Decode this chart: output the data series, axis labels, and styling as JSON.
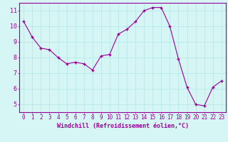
{
  "x": [
    0,
    1,
    2,
    3,
    4,
    5,
    6,
    7,
    8,
    9,
    10,
    11,
    12,
    13,
    14,
    15,
    16,
    17,
    18,
    19,
    20,
    21,
    22,
    23
  ],
  "y": [
    10.3,
    9.3,
    8.6,
    8.5,
    8.0,
    7.6,
    7.7,
    7.6,
    7.2,
    8.1,
    8.2,
    9.5,
    9.8,
    10.3,
    11.0,
    11.2,
    11.2,
    10.0,
    7.9,
    6.1,
    5.0,
    4.9,
    6.1,
    6.5
  ],
  "line_color": "#990099",
  "marker": "+",
  "xlabel": "Windchill (Refroidissement éolien,°C)",
  "ylabel": "",
  "ylim": [
    4.5,
    11.5
  ],
  "yticks": [
    5,
    6,
    7,
    8,
    9,
    10,
    11
  ],
  "xlim": [
    -0.5,
    23.5
  ],
  "xticks": [
    0,
    1,
    2,
    3,
    4,
    5,
    6,
    7,
    8,
    9,
    10,
    11,
    12,
    13,
    14,
    15,
    16,
    17,
    18,
    19,
    20,
    21,
    22,
    23
  ],
  "bg_color": "#d6f5f5",
  "grid_color": "#b8e8e8",
  "tick_color": "#990099",
  "label_color": "#990099",
  "axis_color": "#990099",
  "label_fontsize": 5.5
}
